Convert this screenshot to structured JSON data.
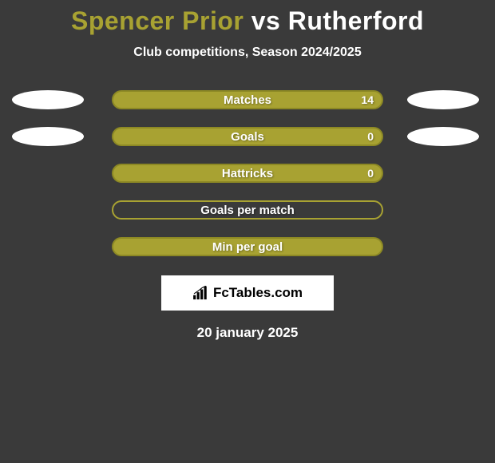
{
  "title": {
    "left": "Spencer Prior",
    "vs": "vs",
    "right": "Rutherford"
  },
  "subtitle": "Club competitions, Season 2024/2025",
  "colors": {
    "olive": "#a8a232",
    "oliveBorder": "#8d8924",
    "white": "#ffffff",
    "bg": "#3a3a3a"
  },
  "stats": [
    {
      "label": "Matches",
      "value": "14",
      "leftEllipse": "#ffffff",
      "rightEllipse": "#ffffff",
      "barFill": "#a8a232",
      "barBorder": "#8d8924"
    },
    {
      "label": "Goals",
      "value": "0",
      "leftEllipse": "#ffffff",
      "rightEllipse": "#ffffff",
      "barFill": "#a8a232",
      "barBorder": "#8d8924"
    },
    {
      "label": "Hattricks",
      "value": "0",
      "leftEllipse": null,
      "rightEllipse": null,
      "barFill": "#a8a232",
      "barBorder": "#8d8924"
    },
    {
      "label": "Goals per match",
      "value": "",
      "leftEllipse": null,
      "rightEllipse": null,
      "barFill": "transparent",
      "barBorder": "#a8a232"
    },
    {
      "label": "Min per goal",
      "value": "",
      "leftEllipse": null,
      "rightEllipse": null,
      "barFill": "#a8a232",
      "barBorder": "#8d8924"
    }
  ],
  "brand": "FcTables.com",
  "date": "20 january 2025"
}
